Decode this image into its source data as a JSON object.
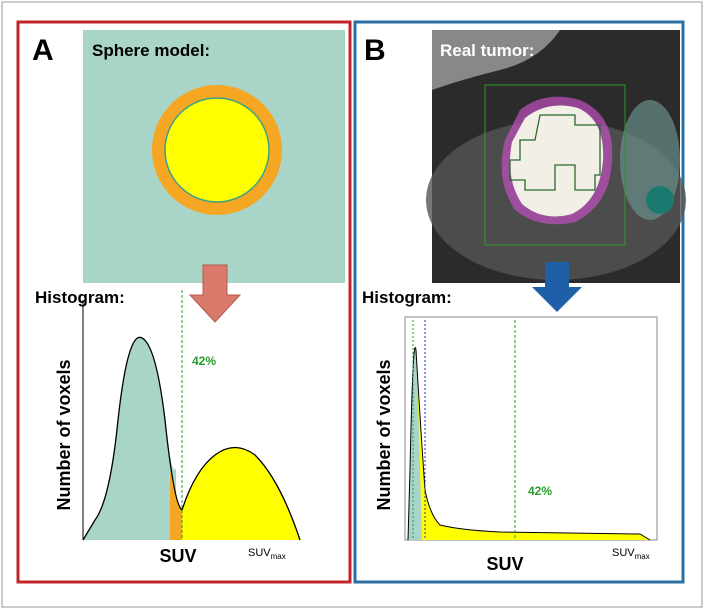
{
  "panels": [
    {
      "label": "A",
      "image_title": "Sphere model:",
      "histogram_title": "Histogram:",
      "threshold_label": "42%",
      "y_axis_label": "Number of voxels",
      "x_axis_label": "SUV",
      "x_max_label": {
        "base": "SUV",
        "sub": "max"
      }
    },
    {
      "label": "B",
      "image_title": "Real tumor:",
      "histogram_title": "Histogram:",
      "threshold_label": "42%",
      "y_axis_label": "Number of voxels",
      "x_axis_label": "SUV",
      "x_max_label": {
        "base": "SUV",
        "sub": "max"
      }
    }
  ]
}
